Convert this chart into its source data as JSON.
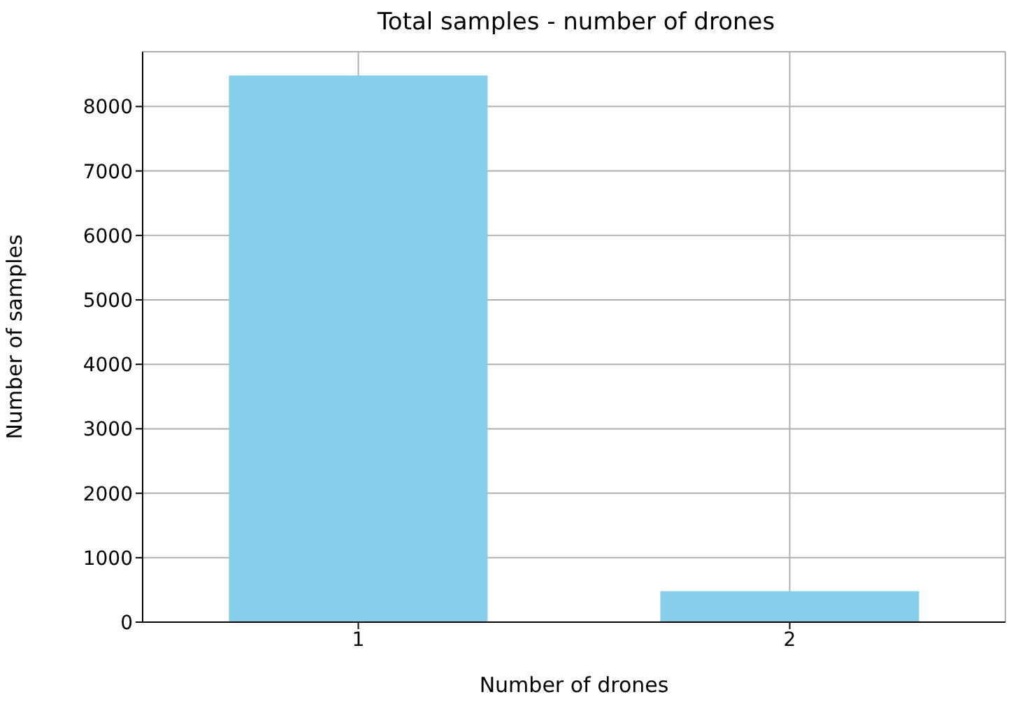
{
  "chart_data": {
    "type": "bar",
    "title": "Total samples - number of drones",
    "xlabel": "Number of drones",
    "ylabel": "Number of samples",
    "categories": [
      "1",
      "2"
    ],
    "values": [
      8480,
      480
    ],
    "color": "#87ceeb",
    "ylim": [
      0,
      8850
    ],
    "yticks": [
      0,
      1000,
      2000,
      3000,
      4000,
      5000,
      6000,
      7000,
      8000
    ],
    "grid": true
  }
}
